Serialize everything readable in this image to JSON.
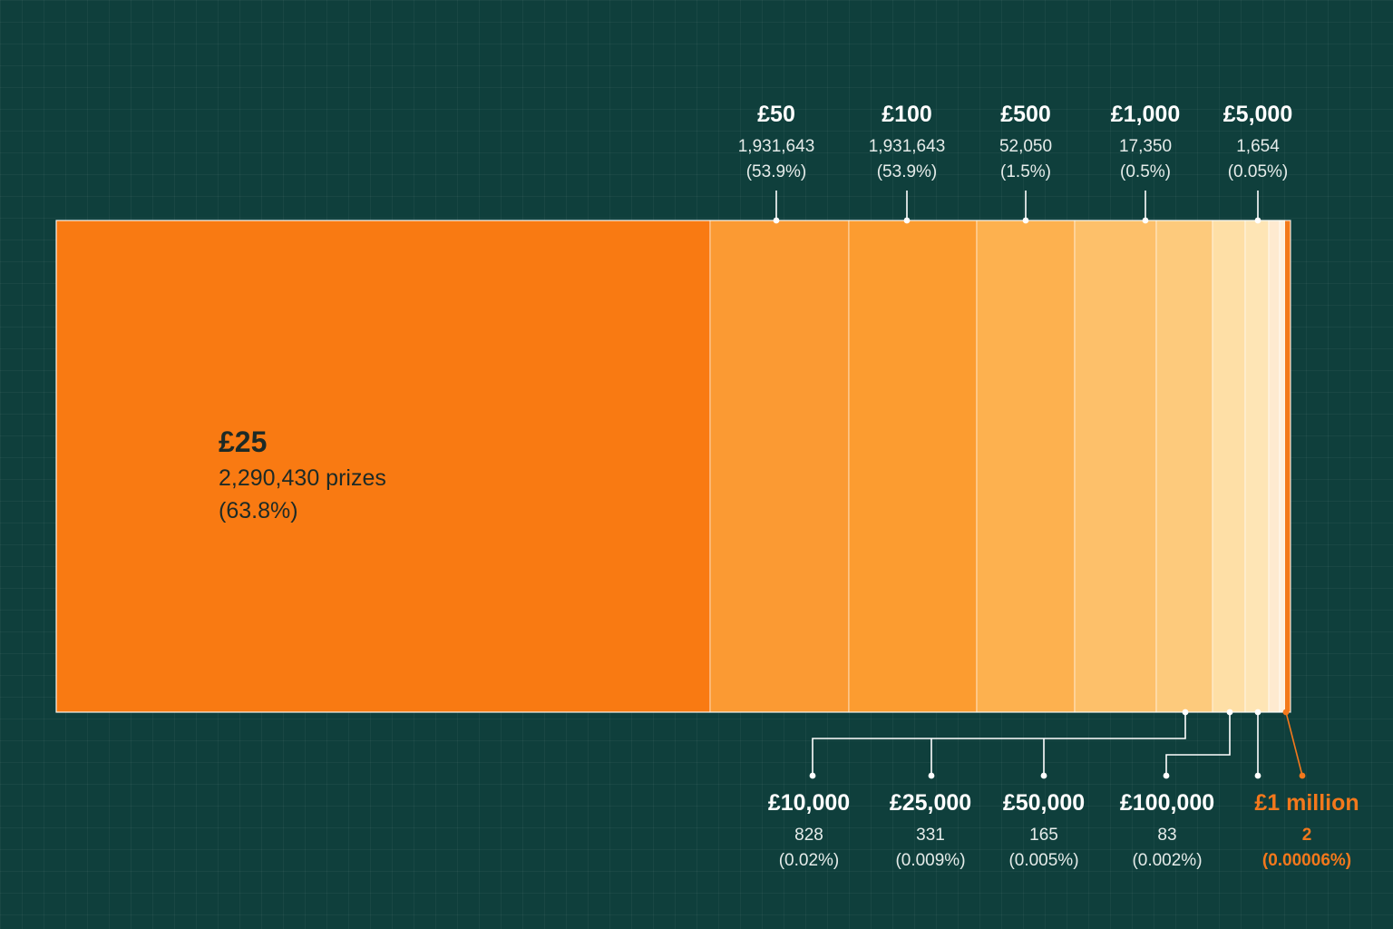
{
  "chart_data": {
    "type": "bar",
    "layout": "stacked-horizontal",
    "title": "",
    "xlabel": "",
    "ylabel": "",
    "categories": [
      "£25",
      "£50",
      "£100",
      "£500",
      "£1,000",
      "£5,000",
      "£10,000",
      "£25,000",
      "£50,000",
      "£100,000",
      "£1 million"
    ],
    "series": [
      {
        "values": [
          2290430,
          1931643,
          1931643,
          52050,
          17350,
          1654,
          828,
          331,
          165,
          83,
          2
        ]
      }
    ],
    "labels": [
      {
        "amount": "£25",
        "count": "2,290,430 prizes",
        "percent": "(63.8%)"
      },
      {
        "amount": "£50",
        "count": "1,931,643",
        "percent": "(53.9%)"
      },
      {
        "amount": "£100",
        "count": "1,931,643",
        "percent": "(53.9%)"
      },
      {
        "amount": "£500",
        "count": "52,050",
        "percent": "(1.5%)"
      },
      {
        "amount": "£1,000",
        "count": "17,350",
        "percent": "(0.5%)"
      },
      {
        "amount": "£5,000",
        "count": "1,654",
        "percent": "(0.05%)"
      },
      {
        "amount": "£10,000",
        "count": "828",
        "percent": "(0.02%)"
      },
      {
        "amount": "£25,000",
        "count": "331",
        "percent": "(0.009%)"
      },
      {
        "amount": "£50,000",
        "count": "165",
        "percent": "(0.005%)"
      },
      {
        "amount": "£100,000",
        "count": "83",
        "percent": "(0.002%)"
      },
      {
        "amount": "£1 million",
        "count": "2",
        "percent": "(0.00006%)"
      }
    ],
    "colors": [
      "#f97a12",
      "#fb9a33",
      "#fc9c30",
      "#fdb14f",
      "#fdc06a",
      "#fdca7c",
      "#fedfa6",
      "#fee5b5",
      "#feead0",
      "#fef0dc",
      "#f37a1a"
    ],
    "highlight_color": "#f3781c",
    "background": "#0f3f3c",
    "grid": true,
    "legend": "none"
  }
}
